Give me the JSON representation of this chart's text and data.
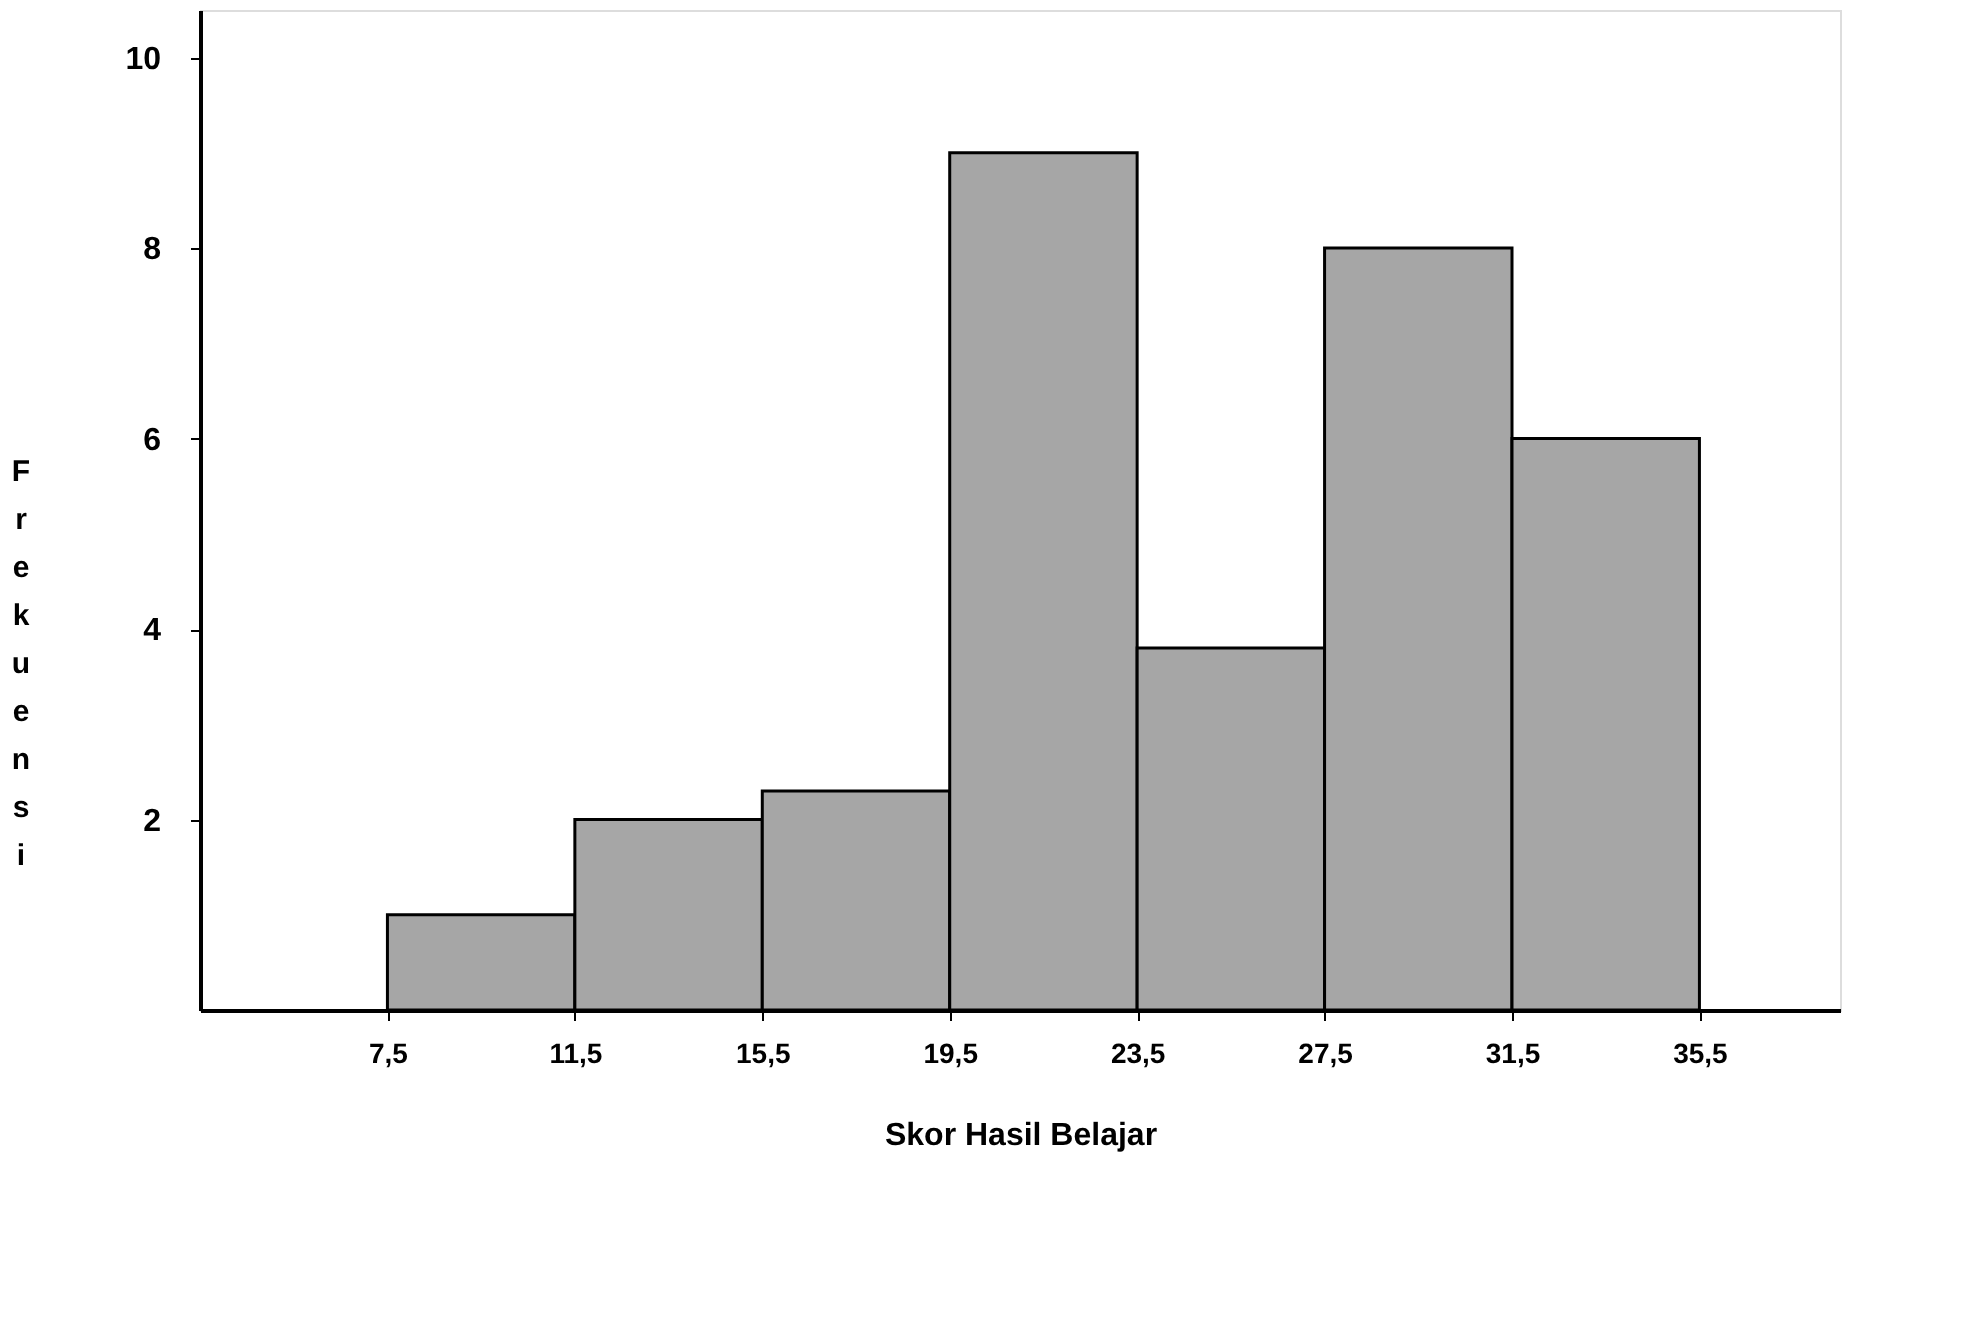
{
  "chart_data": {
    "type": "histogram",
    "xlabel": "Skor Hasil Belajar",
    "ylabel": "Frekuensi",
    "bins": [
      7.5,
      11.5,
      15.5,
      19.5,
      23.5,
      27.5,
      31.5,
      35.5
    ],
    "values": [
      1,
      2,
      2.3,
      9,
      3.8,
      8,
      6
    ],
    "color": "#a6a6a6",
    "xlim": [
      3.5,
      38.5
    ],
    "xticks": [
      {
        "value": 7.5,
        "label": "7,5"
      },
      {
        "value": 11.5,
        "label": "11,5"
      },
      {
        "value": 15.5,
        "label": "15,5"
      },
      {
        "value": 19.5,
        "label": "19,5"
      },
      {
        "value": 23.5,
        "label": "23,5"
      },
      {
        "value": 27.5,
        "label": "27,5"
      },
      {
        "value": 31.5,
        "label": "31,5"
      },
      {
        "value": 35.5,
        "label": "35,5"
      }
    ],
    "ylim": [
      0,
      10.5
    ],
    "yticks": [
      2,
      4,
      6,
      8,
      10
    ],
    "grid": false
  }
}
